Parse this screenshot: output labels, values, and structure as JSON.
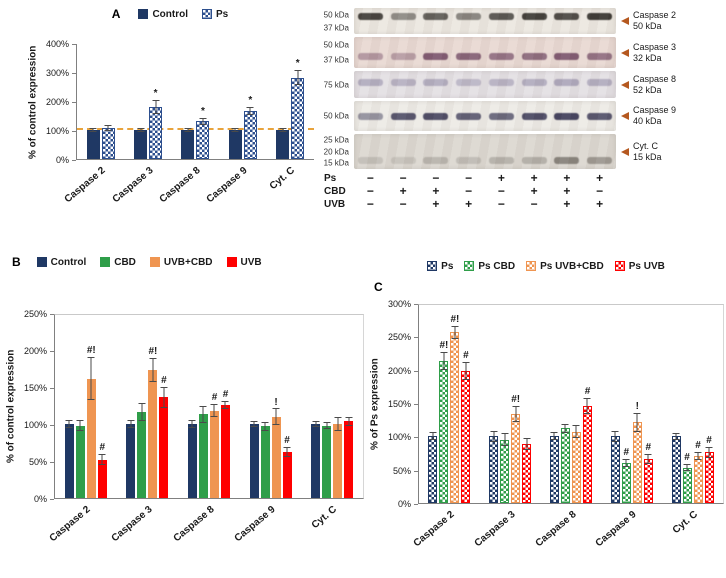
{
  "chart_data": [
    {
      "panel_label": "A",
      "type": "bar",
      "ylabel": "% of control expression",
      "ylim": [
        0,
        400
      ],
      "yticks": [
        "0%",
        "100%",
        "200%",
        "300%",
        "400%"
      ],
      "categories": [
        "Caspase 2",
        "Caspase 3",
        "Caspase 8",
        "Caspase 9",
        "Cyt. C"
      ],
      "ref_line": 100,
      "grid": false,
      "legend_position": "top",
      "series": [
        {
          "name": "Control",
          "color": "#1f3864",
          "pattern": "solid",
          "values": [
            100,
            100,
            100,
            100,
            100
          ],
          "errors": [
            6,
            7,
            6,
            6,
            8
          ],
          "labels": [
            "",
            "",
            "",
            "",
            ""
          ]
        },
        {
          "name": "Ps",
          "color": "#2d4f8e",
          "pattern": "checker",
          "values": [
            106,
            180,
            131,
            165,
            281
          ],
          "errors": [
            10,
            24,
            12,
            14,
            26
          ],
          "labels": [
            "",
            "*",
            "*",
            "*",
            "*"
          ]
        }
      ]
    },
    {
      "panel_label": "B",
      "type": "bar",
      "ylabel": "% of control expression",
      "ylim": [
        0,
        250
      ],
      "yticks": [
        "0%",
        "50%",
        "100%",
        "150%",
        "200%",
        "250%"
      ],
      "categories": [
        "Caspase 2",
        "Caspase 3",
        "Caspase 8",
        "Caspase 9",
        "Cyt. C"
      ],
      "boxed": true,
      "grid": false,
      "legend_position": "top",
      "series": [
        {
          "name": "Control",
          "color": "#1f3864",
          "pattern": "solid",
          "values": [
            100,
            100,
            100,
            100,
            100
          ],
          "errors": [
            5,
            6,
            5,
            4,
            4
          ],
          "labels": [
            "",
            "",
            "",
            "",
            ""
          ]
        },
        {
          "name": "CBD",
          "color": "#2f9e49",
          "pattern": "solid",
          "values": [
            98,
            116,
            113,
            97,
            98
          ],
          "errors": [
            7,
            12,
            11,
            6,
            5
          ],
          "labels": [
            "",
            "",
            "",
            "",
            ""
          ]
        },
        {
          "name": "UVB+CBD",
          "color": "#ef9551",
          "pattern": "solid",
          "values": [
            161,
            173,
            118,
            110,
            100
          ],
          "errors": [
            29,
            16,
            9,
            11,
            9
          ],
          "labels": [
            "#!",
            "#!",
            "#",
            "!",
            ""
          ]
        },
        {
          "name": "UVB",
          "color": "#fe0000",
          "pattern": "solid",
          "values": [
            52,
            136,
            126,
            62,
            104
          ],
          "errors": [
            7,
            14,
            5,
            7,
            6
          ],
          "labels": [
            "#",
            "#",
            "#",
            "#",
            ""
          ]
        }
      ]
    },
    {
      "panel_label": "C",
      "type": "bar",
      "ylabel": "% of Ps expression",
      "ylim": [
        0,
        300
      ],
      "yticks": [
        "0%",
        "50%",
        "100%",
        "150%",
        "200%",
        "250%",
        "300%"
      ],
      "categories": [
        "Caspase 2",
        "Caspase 3",
        "Caspase 8",
        "Caspase 9",
        "Cyt. C"
      ],
      "boxed": true,
      "grid": false,
      "legend_position": "top",
      "series": [
        {
          "name": "Ps",
          "color": "#1f3864",
          "pattern": "checker",
          "values": [
            100,
            100,
            100,
            100,
            100
          ],
          "errors": [
            6,
            8,
            6,
            8,
            5
          ],
          "labels": [
            "",
            "",
            "",
            "",
            ""
          ]
        },
        {
          "name": "Ps CBD",
          "color": "#2f9e49",
          "pattern": "checker",
          "values": [
            213,
            95,
            112,
            60,
            53
          ],
          "errors": [
            13,
            10,
            7,
            6,
            5
          ],
          "labels": [
            "#!",
            "",
            "",
            "#",
            "#"
          ]
        },
        {
          "name": "Ps UVB+CBD",
          "color": "#ef9551",
          "pattern": "checker",
          "values": [
            256,
            133,
            107,
            121,
            70
          ],
          "errors": [
            10,
            12,
            10,
            14,
            6
          ],
          "labels": [
            "#!",
            "#!",
            "",
            "!",
            "#"
          ]
        },
        {
          "name": "Ps UVB",
          "color": "#fe0000",
          "pattern": "checker",
          "values": [
            198,
            88,
            146,
            66,
            76
          ],
          "errors": [
            13,
            9,
            12,
            7,
            8
          ],
          "labels": [
            "#",
            "",
            "#",
            "#",
            "#"
          ]
        }
      ]
    }
  ],
  "blot": {
    "lane_count": 8,
    "rows": [
      {
        "markers": [
          "50 kDa",
          "37 kDa"
        ],
        "target": "Caspase 2",
        "target_kda": "50 kDa",
        "height": 26,
        "bg": "#ece8e1",
        "band_color": "#33302b",
        "band_y": 0.32,
        "intensities": [
          0.9,
          0.5,
          0.75,
          0.55,
          0.8,
          0.92,
          0.85,
          0.95
        ]
      },
      {
        "markers": [
          "50 kDa",
          "37 kDa"
        ],
        "target": "Caspase 3",
        "target_kda": "32 kDa",
        "height": 31,
        "bg": "#e9d9d3",
        "band_color": "#6e4560",
        "band_y": 0.6,
        "intensities": [
          0.45,
          0.4,
          0.85,
          0.8,
          0.7,
          0.75,
          0.85,
          0.7
        ]
      },
      {
        "markers": [
          "75 kDa"
        ],
        "target": "Caspase 8",
        "target_kda": "52 kDa",
        "height": 27,
        "bg": "#e4e0e4",
        "band_color": "#8b84a2",
        "band_y": 0.42,
        "intensities": [
          0.55,
          0.5,
          0.55,
          0.45,
          0.5,
          0.55,
          0.6,
          0.55
        ]
      },
      {
        "markers": [
          "50 kDa"
        ],
        "target": "Caspase 9",
        "target_kda": "40 kDa",
        "height": 30,
        "bg": "#edebe6",
        "band_color": "#3c3a57",
        "band_y": 0.5,
        "intensities": [
          0.5,
          0.85,
          0.9,
          0.8,
          0.75,
          0.9,
          0.95,
          0.85
        ]
      },
      {
        "markers": [
          "25 kDa",
          "20 kDa",
          "15 kDa"
        ],
        "target": "Cyt. C",
        "target_kda": "15 kDa",
        "height": 35,
        "bg": "#dcd8d1",
        "band_color": "#514c45",
        "band_y": 0.74,
        "intensities": [
          0.18,
          0.15,
          0.25,
          0.2,
          0.28,
          0.3,
          0.6,
          0.45
        ]
      }
    ],
    "condition_rows": [
      {
        "label": "Ps",
        "signs": [
          "−",
          "−",
          "−",
          "−",
          "+",
          "+",
          "+",
          "+"
        ]
      },
      {
        "label": "CBD",
        "signs": [
          "−",
          "+",
          "+",
          "−",
          "−",
          "+",
          "+",
          "−"
        ]
      },
      {
        "label": "UVB",
        "signs": [
          "−",
          "−",
          "+",
          "+",
          "−",
          "−",
          "+",
          "+"
        ]
      }
    ]
  }
}
